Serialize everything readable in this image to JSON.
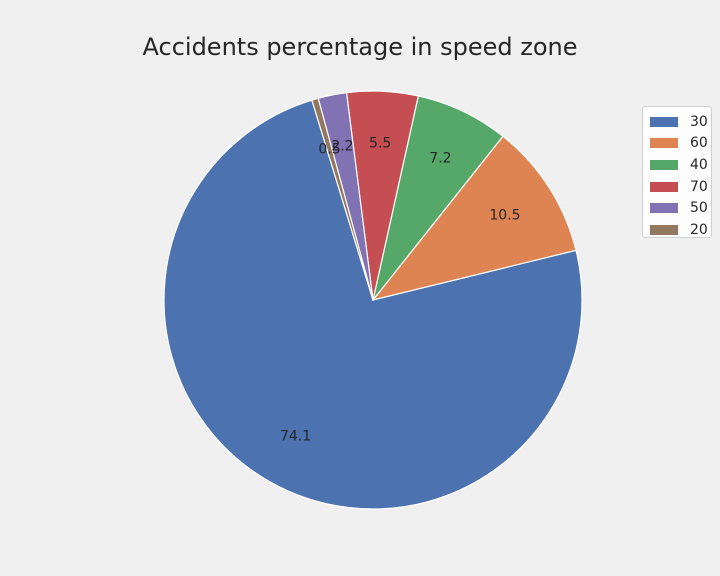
{
  "chart_data": {
    "type": "pie",
    "title": "Accidents percentage in speed zone",
    "slices": [
      {
        "label": "30",
        "value": 74.1,
        "display": "74.1",
        "color": "#4c72b0"
      },
      {
        "label": "60",
        "value": 10.5,
        "display": "10.5",
        "color": "#dd8452"
      },
      {
        "label": "40",
        "value": 7.2,
        "display": "7.2",
        "color": "#55a868"
      },
      {
        "label": "70",
        "value": 5.5,
        "display": "5.5",
        "color": "#c44e52"
      },
      {
        "label": "50",
        "value": 2.2,
        "display": "2.2",
        "color": "#8172b3"
      },
      {
        "label": "20",
        "value": 0.5,
        "display": "0.5",
        "color": "#937860"
      }
    ],
    "legend": {
      "placement": "right",
      "entries": [
        "30",
        "60",
        "40",
        "70",
        "50",
        "20"
      ]
    },
    "grid": false
  }
}
